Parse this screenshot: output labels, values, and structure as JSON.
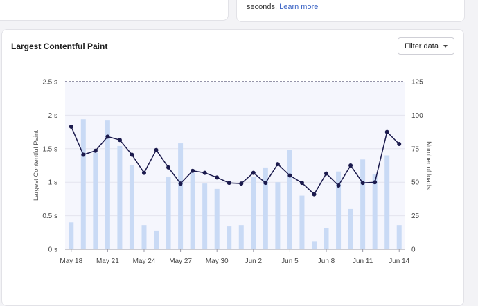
{
  "top_right_card": {
    "text": "seconds.",
    "link": "Learn more"
  },
  "card": {
    "title": "Largest Contentful Paint",
    "filter_label": "Filter data"
  },
  "chart_data": {
    "type": "bar+line",
    "x": [
      "May 18",
      "May 19",
      "May 20",
      "May 21",
      "May 22",
      "May 23",
      "May 24",
      "May 25",
      "May 26",
      "May 27",
      "May 28",
      "May 29",
      "May 30",
      "May 31",
      "Jun 1",
      "Jun 2",
      "Jun 3",
      "Jun 4",
      "Jun 5",
      "Jun 6",
      "Jun 7",
      "Jun 8",
      "Jun 9",
      "Jun 10",
      "Jun 11",
      "Jun 12",
      "Jun 13",
      "Jun 14"
    ],
    "x_tick_labels": [
      "May 18",
      "May 21",
      "May 24",
      "May 27",
      "May 30",
      "Jun 2",
      "Jun 5",
      "Jun 8",
      "Jun 11",
      "Jun 14"
    ],
    "y_left": {
      "label": "Largest Contentful Paint",
      "ticks": [
        "0 s",
        "0.5 s",
        "1 s",
        "1.5 s",
        "2 s",
        "2.5 s"
      ],
      "range": [
        0,
        2.5
      ],
      "unit": "s"
    },
    "y_right": {
      "label": "Number of loads",
      "ticks": [
        "0",
        "25",
        "50",
        "75",
        "100",
        "125"
      ],
      "range": [
        0,
        125
      ]
    },
    "threshold_dashed": 2.5,
    "bars_loads": [
      20,
      97,
      72,
      96,
      77,
      63,
      18,
      14,
      54,
      79,
      57,
      49,
      45,
      17,
      18,
      54,
      61,
      50,
      74,
      40,
      6,
      16,
      58,
      30,
      67,
      56,
      70,
      18
    ],
    "line_lcp": [
      1.83,
      1.41,
      1.47,
      1.68,
      1.63,
      1.41,
      1.14,
      1.48,
      1.22,
      0.98,
      1.17,
      1.14,
      1.07,
      0.99,
      0.98,
      1.14,
      0.99,
      1.27,
      1.1,
      0.99,
      0.82,
      1.13,
      0.95,
      1.25,
      0.99,
      1.0,
      1.75,
      1.57
    ],
    "colors": {
      "bar": "#c9daf5",
      "line": "#1b1a4d",
      "plot_bg": "#f5f6fd",
      "grid": "#e3e4ee"
    }
  }
}
